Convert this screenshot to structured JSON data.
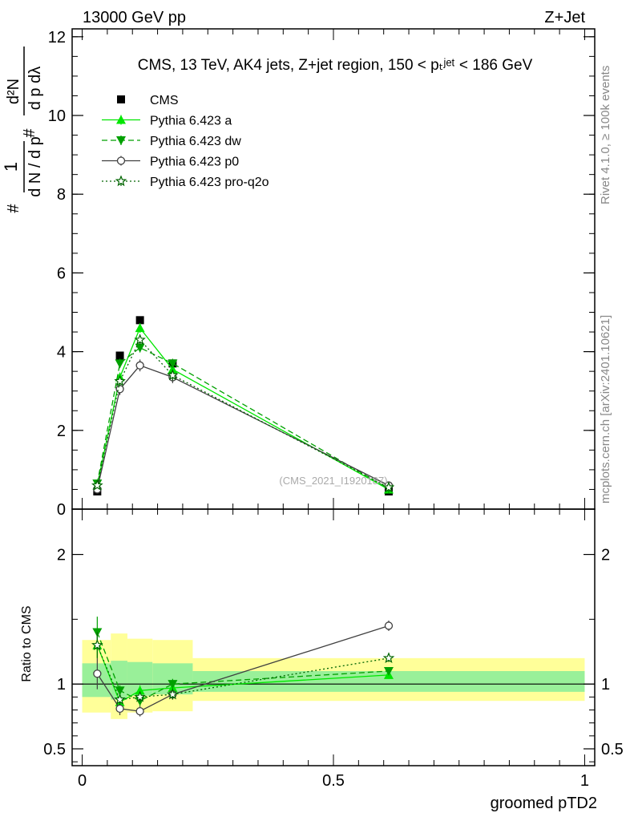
{
  "header": {
    "left": "13000 GeV pp",
    "right": "Z+Jet"
  },
  "side_text": {
    "rivet": "Rivet 4.1.0, ≥ 100k events",
    "mcplots": "mcplots.cern.ch [arXiv:2401.10621]"
  },
  "watermark": "(CMS_2021_I1920187)",
  "ylabel_main": "1/N dN/dp_T d²N/dp_T dλ",
  "chart_data": [
    {
      "type": "line",
      "panel": "main",
      "title": "CMS, 13 TeV, AK4 jets, Z+jet region, 150 < p_T^{jet} < 186 GeV",
      "xlabel": "groomed pTD2",
      "ylabel": "1/N dN/dp_T d²N/dp_T dλ",
      "xlim": [
        -0.02,
        1.02
      ],
      "ylim": [
        0,
        12.2
      ],
      "yticks": [
        0,
        2,
        4,
        6,
        8,
        10,
        12
      ],
      "ytick_labels": [
        "0",
        "2",
        "4",
        "6",
        "8",
        "10",
        "12"
      ],
      "x": [
        0.03,
        0.075,
        0.115,
        0.18,
        0.61
      ],
      "series": [
        {
          "name": "CMS",
          "color": "#000000",
          "marker": "square",
          "dash": "",
          "values": [
            0.45,
            3.9,
            4.8,
            3.7,
            0.45
          ],
          "errors": [
            0.04,
            0.08,
            0.08,
            0.08,
            0.04
          ]
        },
        {
          "name": "Pythia 6.423 a",
          "color": "#00e600",
          "marker": "triangle-up",
          "dash": "",
          "values": [
            0.6,
            3.35,
            4.6,
            3.55,
            0.5
          ],
          "errors": [
            0.05,
            0.12,
            0.12,
            0.12,
            0.04
          ]
        },
        {
          "name": "Pythia 6.423 dw",
          "color": "#00a000",
          "marker": "triangle-down",
          "dash": "7,4",
          "values": [
            0.65,
            3.7,
            4.1,
            3.7,
            0.52
          ],
          "errors": [
            0.05,
            0.12,
            0.12,
            0.12,
            0.04
          ]
        },
        {
          "name": "Pythia 6.423 p0",
          "color": "#404040",
          "marker": "circle-open",
          "dash": "",
          "values": [
            0.5,
            3.05,
            3.65,
            3.35,
            0.6
          ],
          "errors": [
            0.05,
            0.15,
            0.15,
            0.15,
            0.04
          ]
        },
        {
          "name": "Pythia 6.423 pro-q2o",
          "color": "#006400",
          "marker": "star-open",
          "dash": "2,3",
          "values": [
            0.6,
            3.25,
            4.3,
            3.4,
            0.55
          ],
          "errors": [
            0.05,
            0.13,
            0.13,
            0.13,
            0.04
          ]
        }
      ],
      "legend": "top-left"
    },
    {
      "type": "line",
      "panel": "ratio",
      "ylabel": "Ratio to CMS",
      "xlabel": "groomed pTD2",
      "xlim": [
        -0.02,
        1.02
      ],
      "ylim": [
        0.37,
        2.35
      ],
      "yticks": [
        0.5,
        1,
        2
      ],
      "ytick_labels": [
        "0.5",
        "1",
        "2"
      ],
      "xticks": [
        0,
        0.5,
        1
      ],
      "xtick_labels": [
        "0",
        "0.5",
        "1"
      ],
      "bands": [
        {
          "x0": 0.0,
          "x1": 0.057,
          "yellow": [
            0.78,
            1.34
          ],
          "green": [
            0.9,
            1.16
          ]
        },
        {
          "x0": 0.057,
          "x1": 0.09,
          "yellow": [
            0.73,
            1.39
          ],
          "green": [
            0.88,
            1.18
          ]
        },
        {
          "x0": 0.09,
          "x1": 0.14,
          "yellow": [
            0.78,
            1.35
          ],
          "green": [
            0.91,
            1.17
          ]
        },
        {
          "x0": 0.14,
          "x1": 0.22,
          "yellow": [
            0.79,
            1.34
          ],
          "green": [
            0.92,
            1.16
          ]
        },
        {
          "x0": 0.22,
          "x1": 1.0,
          "yellow": [
            0.87,
            1.2
          ],
          "green": [
            0.94,
            1.1
          ]
        }
      ],
      "x": [
        0.03,
        0.075,
        0.115,
        0.18,
        0.61
      ],
      "series": [
        {
          "name": "Pythia 6.423 a",
          "color": "#00e600",
          "marker": "triangle-up",
          "dash": "",
          "values": [
            1.3,
            0.86,
            0.95,
            0.97,
            1.07
          ],
          "errors": [
            0.1,
            0.04,
            0.04,
            0.04,
            0.03
          ]
        },
        {
          "name": "Pythia 6.423 dw",
          "color": "#00a000",
          "marker": "triangle-down",
          "dash": "7,4",
          "values": [
            1.4,
            0.95,
            0.87,
            1.0,
            1.1
          ],
          "errors": [
            0.12,
            0.04,
            0.04,
            0.04,
            0.03
          ]
        },
        {
          "name": "Pythia 6.423 p0",
          "color": "#404040",
          "marker": "circle-open",
          "dash": "",
          "values": [
            1.08,
            0.81,
            0.79,
            0.92,
            1.45
          ],
          "errors": [
            0.12,
            0.05,
            0.04,
            0.04,
            0.04
          ]
        },
        {
          "name": "Pythia 6.423 pro-q2o",
          "color": "#006400",
          "marker": "star-open",
          "dash": "2,3",
          "values": [
            1.3,
            0.88,
            0.9,
            0.92,
            1.2
          ],
          "errors": [
            0.1,
            0.04,
            0.04,
            0.04,
            0.03
          ]
        }
      ]
    }
  ]
}
